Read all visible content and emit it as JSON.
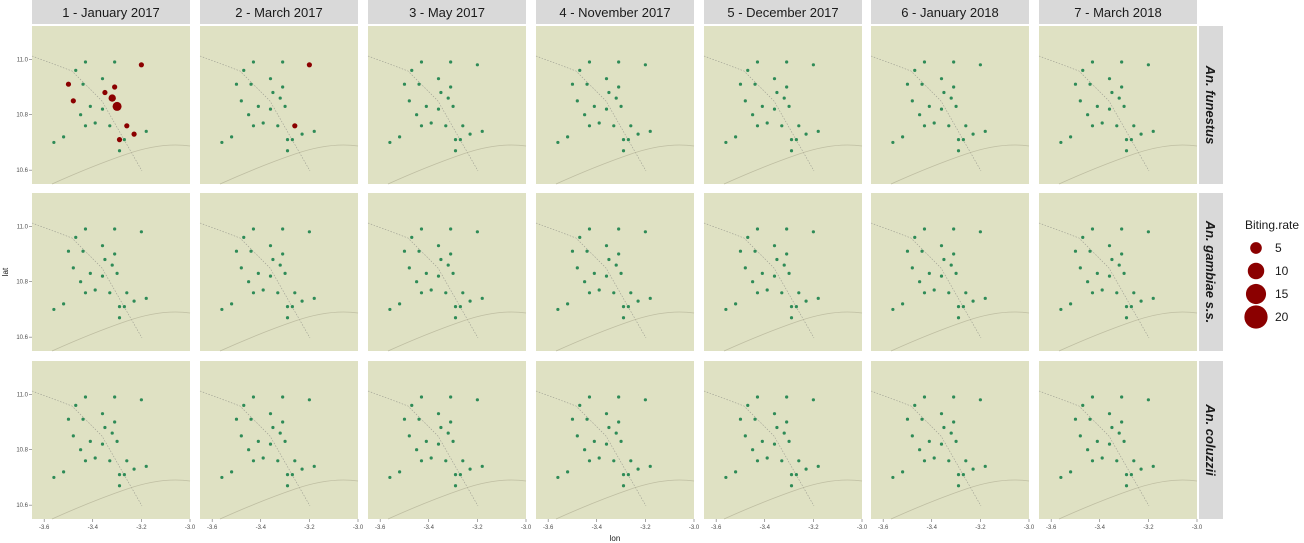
{
  "chart_data": {
    "type": "scatter",
    "subtype": "faceted bubble map",
    "xlabel": "lon",
    "ylabel": "lat",
    "xlim": [
      -3.65,
      -3.0
    ],
    "ylim": [
      10.55,
      11.12
    ],
    "x_ticks": [
      -3.6,
      -3.4,
      -3.2,
      -3.0
    ],
    "x_tick_labels": [
      "-3.6",
      "-3.4",
      "-3.2",
      "-3.0"
    ],
    "y_ticks": [
      10.6,
      10.8,
      11.0
    ],
    "y_tick_labels": [
      "10.6",
      "10.8",
      "11.0"
    ],
    "columns": [
      "1 - January 2017",
      "2 - March 2017",
      "3 - May 2017",
      "4 - November 2017",
      "5 - December 2017",
      "6 - January 2018",
      "7 - March 2018"
    ],
    "rows": [
      "An. funestus",
      "An. gambiae s.s.",
      "An. coluzzii"
    ],
    "legend": {
      "title": "Biting.rate",
      "position": "right",
      "values": [
        5,
        10,
        15,
        20
      ],
      "labels": [
        "5",
        "10",
        "15",
        "20"
      ]
    },
    "colors": {
      "positive": "#8b0000",
      "zero": "#2e8b57",
      "map_background": "#dfe1c3",
      "strip": "#d9d9d9"
    },
    "sites": [
      {
        "lon": -3.47,
        "lat": 10.96
      },
      {
        "lon": -3.43,
        "lat": 10.99
      },
      {
        "lon": -3.36,
        "lat": 10.93
      },
      {
        "lon": -3.31,
        "lat": 10.99
      },
      {
        "lon": -3.2,
        "lat": 10.98
      },
      {
        "lon": -3.5,
        "lat": 10.91
      },
      {
        "lon": -3.44,
        "lat": 10.91
      },
      {
        "lon": -3.35,
        "lat": 10.88
      },
      {
        "lon": -3.31,
        "lat": 10.9
      },
      {
        "lon": -3.32,
        "lat": 10.86
      },
      {
        "lon": -3.3,
        "lat": 10.83
      },
      {
        "lon": -3.48,
        "lat": 10.85
      },
      {
        "lon": -3.45,
        "lat": 10.8
      },
      {
        "lon": -3.41,
        "lat": 10.83
      },
      {
        "lon": -3.36,
        "lat": 10.82
      },
      {
        "lon": -3.39,
        "lat": 10.77
      },
      {
        "lon": -3.43,
        "lat": 10.76
      },
      {
        "lon": -3.33,
        "lat": 10.76
      },
      {
        "lon": -3.26,
        "lat": 10.76
      },
      {
        "lon": -3.23,
        "lat": 10.73
      },
      {
        "lon": -3.29,
        "lat": 10.71
      },
      {
        "lon": -3.27,
        "lat": 10.71
      },
      {
        "lon": -3.29,
        "lat": 10.67
      },
      {
        "lon": -3.18,
        "lat": 10.74
      },
      {
        "lon": -3.52,
        "lat": 10.72
      },
      {
        "lon": -3.56,
        "lat": 10.7
      }
    ],
    "biting_rate": [
      [
        [
          0,
          0,
          0,
          0,
          1,
          1,
          0,
          1,
          1,
          2,
          3,
          1,
          0,
          0,
          0,
          0,
          0,
          0,
          1,
          1,
          1,
          0,
          0,
          0,
          0,
          0
        ],
        [
          0,
          0,
          0,
          0,
          1,
          0,
          0,
          0,
          0,
          0,
          0,
          0,
          0,
          0,
          0,
          0,
          0,
          0,
          1,
          0,
          0,
          0,
          0,
          0,
          0,
          0
        ],
        [
          0,
          0,
          0,
          0,
          0,
          0,
          0,
          0,
          0,
          0,
          0,
          0,
          0,
          0,
          0,
          0,
          0,
          0,
          0,
          0,
          0,
          0,
          0,
          0,
          0,
          0
        ],
        [
          0,
          0,
          0,
          0,
          0,
          0,
          0,
          0,
          0,
          0,
          0,
          0,
          0,
          0,
          0,
          0,
          0,
          0,
          0,
          0,
          0,
          0,
          0,
          0,
          0,
          0
        ],
        [
          0,
          0,
          0,
          0,
          0,
          0,
          0,
          0,
          0,
          0,
          0,
          0,
          0,
          0,
          0,
          0,
          0,
          0,
          0,
          0,
          0,
          0,
          0,
          0,
          0,
          0
        ],
        [
          0,
          0,
          0,
          0,
          0,
          0,
          0,
          0,
          0,
          0,
          0,
          0,
          0,
          0,
          0,
          0,
          0,
          0,
          0,
          0,
          0,
          0,
          0,
          0,
          0,
          0
        ],
        [
          0,
          0,
          0,
          0,
          0,
          0,
          0,
          0,
          0,
          0,
          0,
          0,
          0,
          0,
          0,
          0,
          0,
          0,
          0,
          0,
          0,
          0,
          0,
          0,
          0,
          0
        ]
      ],
      [
        [
          0,
          0,
          0,
          0,
          0,
          0,
          0,
          0,
          0,
          0,
          0,
          0,
          0,
          0,
          0,
          0,
          0,
          0,
          0,
          0,
          0,
          0,
          0,
          0,
          0,
          0
        ],
        [
          0,
          0,
          0,
          0,
          0,
          0,
          0,
          0,
          0,
          0,
          0,
          0,
          0,
          0,
          0,
          0,
          0,
          0,
          0,
          0,
          0,
          0,
          0,
          0,
          0,
          0
        ],
        [
          0,
          0,
          0,
          0,
          0,
          0,
          0,
          0,
          0,
          0,
          0,
          0,
          0,
          0,
          0,
          0,
          0,
          0,
          0,
          0,
          0,
          0,
          0,
          0,
          0,
          0
        ],
        [
          0,
          0,
          0,
          0,
          0,
          0,
          0,
          0,
          0,
          0,
          0,
          0,
          0,
          0,
          0,
          0,
          0,
          0,
          0,
          0,
          0,
          0,
          0,
          0,
          0,
          0
        ],
        [
          0,
          0,
          0,
          0,
          0,
          0,
          0,
          0,
          0,
          0,
          0,
          0,
          0,
          0,
          0,
          0,
          0,
          0,
          0,
          0,
          0,
          0,
          0,
          0,
          0,
          0
        ],
        [
          0,
          0,
          0,
          0,
          0,
          0,
          0,
          0,
          0,
          0,
          0,
          0,
          0,
          0,
          0,
          0,
          0,
          0,
          0,
          0,
          0,
          0,
          0,
          0,
          0,
          0
        ],
        [
          0,
          0,
          0,
          0,
          0,
          0,
          0,
          0,
          0,
          0,
          0,
          0,
          0,
          0,
          0,
          0,
          0,
          0,
          0,
          0,
          0,
          0,
          0,
          0,
          0,
          0
        ]
      ],
      [
        [
          0,
          0,
          0,
          0,
          0,
          0,
          0,
          0,
          0,
          0,
          0,
          0,
          0,
          0,
          0,
          0,
          0,
          0,
          0,
          0,
          0,
          0,
          0,
          0,
          0,
          0
        ],
        [
          0,
          0,
          0,
          0,
          0,
          0,
          0,
          0,
          0,
          0,
          0,
          0,
          0,
          0,
          0,
          0,
          0,
          0,
          0,
          0,
          0,
          0,
          0,
          0,
          0,
          0
        ],
        [
          0,
          0,
          0,
          0,
          0,
          0,
          0,
          0,
          0,
          0,
          0,
          0,
          0,
          0,
          0,
          0,
          0,
          0,
          0,
          0,
          0,
          0,
          0,
          0,
          0,
          0
        ],
        [
          0,
          0,
          0,
          0,
          0,
          0,
          0,
          0,
          0,
          0,
          0,
          0,
          0,
          0,
          0,
          0,
          0,
          0,
          0,
          0,
          0,
          0,
          0,
          0,
          0,
          0
        ],
        [
          0,
          0,
          0,
          0,
          0,
          0,
          0,
          0,
          0,
          0,
          0,
          0,
          0,
          0,
          0,
          0,
          0,
          0,
          0,
          0,
          0,
          0,
          0,
          0,
          0,
          0
        ],
        [
          0,
          0,
          0,
          0,
          0,
          0,
          0,
          0,
          0,
          0,
          0,
          0,
          0,
          0,
          0,
          0,
          0,
          0,
          0,
          0,
          0,
          0,
          0,
          0,
          0,
          0
        ],
        [
          0,
          0,
          0,
          0,
          0,
          0,
          0,
          0,
          0,
          0,
          0,
          0,
          0,
          0,
          0,
          0,
          0,
          0,
          0,
          0,
          0,
          0,
          0,
          0,
          0,
          0
        ]
      ]
    ]
  }
}
